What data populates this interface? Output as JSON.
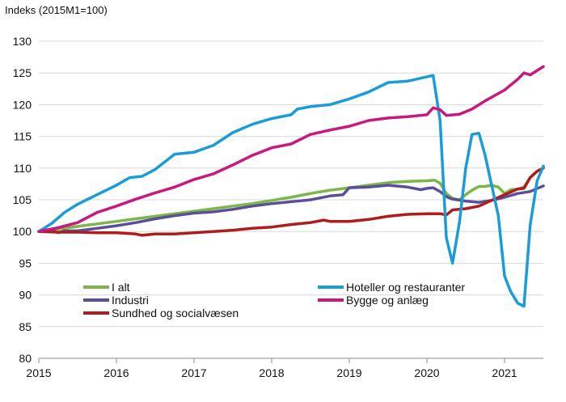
{
  "chart_data": {
    "type": "line",
    "ylabel": "Indeks (2015M1=100)",
    "ylim": [
      80,
      130
    ],
    "yticks": [
      80,
      85,
      90,
      95,
      100,
      105,
      110,
      115,
      120,
      125,
      130
    ],
    "xlim": [
      2015.0,
      2021.5
    ],
    "xticks": [
      "2015",
      "2016",
      "2017",
      "2018",
      "2019",
      "2020",
      "2021"
    ],
    "grid": "horizontal",
    "legend_position": "bottom",
    "series": [
      {
        "name": "I alt",
        "color": "#7ab648",
        "points": [
          [
            2015.0,
            100.0
          ],
          [
            2015.25,
            100.4
          ],
          [
            2015.5,
            100.8
          ],
          [
            2015.75,
            101.2
          ],
          [
            2016.0,
            101.6
          ],
          [
            2016.25,
            102.0
          ],
          [
            2016.5,
            102.4
          ],
          [
            2016.75,
            102.8
          ],
          [
            2017.0,
            103.2
          ],
          [
            2017.25,
            103.6
          ],
          [
            2017.5,
            104.0
          ],
          [
            2017.75,
            104.4
          ],
          [
            2018.0,
            104.9
          ],
          [
            2018.25,
            105.4
          ],
          [
            2018.5,
            106.0
          ],
          [
            2018.75,
            106.5
          ],
          [
            2019.0,
            106.9
          ],
          [
            2019.25,
            107.3
          ],
          [
            2019.5,
            107.7
          ],
          [
            2019.75,
            107.9
          ],
          [
            2020.0,
            108.0
          ],
          [
            2020.1,
            108.1
          ],
          [
            2020.17,
            107.6
          ],
          [
            2020.25,
            106.0
          ],
          [
            2020.33,
            105.2
          ],
          [
            2020.42,
            105.0
          ],
          [
            2020.5,
            105.8
          ],
          [
            2020.58,
            106.5
          ],
          [
            2020.67,
            107.1
          ],
          [
            2020.75,
            107.1
          ],
          [
            2020.83,
            107.3
          ],
          [
            2020.92,
            107.0
          ],
          [
            2021.0,
            106.0
          ],
          [
            2021.08,
            106.6
          ],
          [
            2021.17,
            106.7
          ],
          [
            2021.25,
            107.0
          ],
          [
            2021.33,
            108.5
          ],
          [
            2021.42,
            109.5
          ],
          [
            2021.5,
            110.0
          ]
        ]
      },
      {
        "name": "Industri",
        "color": "#5b4f9a",
        "points": [
          [
            2015.0,
            100.0
          ],
          [
            2015.17,
            100.2
          ],
          [
            2015.25,
            99.8
          ],
          [
            2015.33,
            100.1
          ],
          [
            2015.5,
            100.1
          ],
          [
            2015.75,
            100.5
          ],
          [
            2016.0,
            100.9
          ],
          [
            2016.25,
            101.4
          ],
          [
            2016.5,
            102.0
          ],
          [
            2016.75,
            102.5
          ],
          [
            2017.0,
            102.9
          ],
          [
            2017.25,
            103.1
          ],
          [
            2017.5,
            103.5
          ],
          [
            2017.75,
            104.0
          ],
          [
            2018.0,
            104.4
          ],
          [
            2018.25,
            104.7
          ],
          [
            2018.5,
            105.0
          ],
          [
            2018.75,
            105.6
          ],
          [
            2018.92,
            105.8
          ],
          [
            2019.0,
            106.9
          ],
          [
            2019.25,
            107.0
          ],
          [
            2019.5,
            107.3
          ],
          [
            2019.75,
            107.0
          ],
          [
            2019.92,
            106.6
          ],
          [
            2020.0,
            106.8
          ],
          [
            2020.08,
            106.9
          ],
          [
            2020.17,
            106.3
          ],
          [
            2020.25,
            105.5
          ],
          [
            2020.33,
            105.1
          ],
          [
            2020.5,
            104.8
          ],
          [
            2020.67,
            104.6
          ],
          [
            2020.83,
            104.9
          ],
          [
            2021.0,
            105.4
          ],
          [
            2021.17,
            106.0
          ],
          [
            2021.33,
            106.3
          ],
          [
            2021.5,
            107.2
          ]
        ]
      },
      {
        "name": "Sundhed og socialvæsen",
        "color": "#b01c1c",
        "points": [
          [
            2015.0,
            100.0
          ],
          [
            2015.25,
            99.9
          ],
          [
            2015.5,
            99.9
          ],
          [
            2015.75,
            99.8
          ],
          [
            2016.0,
            99.8
          ],
          [
            2016.25,
            99.6
          ],
          [
            2016.33,
            99.4
          ],
          [
            2016.5,
            99.6
          ],
          [
            2016.75,
            99.6
          ],
          [
            2017.0,
            99.8
          ],
          [
            2017.25,
            100.0
          ],
          [
            2017.5,
            100.2
          ],
          [
            2017.75,
            100.5
          ],
          [
            2018.0,
            100.7
          ],
          [
            2018.25,
            101.1
          ],
          [
            2018.5,
            101.4
          ],
          [
            2018.67,
            101.8
          ],
          [
            2018.75,
            101.6
          ],
          [
            2019.0,
            101.6
          ],
          [
            2019.25,
            101.9
          ],
          [
            2019.5,
            102.4
          ],
          [
            2019.75,
            102.7
          ],
          [
            2020.0,
            102.8
          ],
          [
            2020.17,
            102.8
          ],
          [
            2020.25,
            102.6
          ],
          [
            2020.33,
            103.4
          ],
          [
            2020.5,
            103.6
          ],
          [
            2020.67,
            104.0
          ],
          [
            2020.83,
            104.9
          ],
          [
            2021.0,
            105.8
          ],
          [
            2021.17,
            106.7
          ],
          [
            2021.25,
            106.8
          ],
          [
            2021.33,
            108.5
          ],
          [
            2021.42,
            109.5
          ],
          [
            2021.5,
            110.0
          ]
        ]
      },
      {
        "name": "Hoteller og restauranter",
        "color": "#1a9cd8",
        "points": [
          [
            2015.0,
            100.0
          ],
          [
            2015.17,
            101.3
          ],
          [
            2015.33,
            103.0
          ],
          [
            2015.5,
            104.3
          ],
          [
            2015.75,
            105.8
          ],
          [
            2016.0,
            107.3
          ],
          [
            2016.17,
            108.5
          ],
          [
            2016.33,
            108.7
          ],
          [
            2016.5,
            109.8
          ],
          [
            2016.75,
            112.2
          ],
          [
            2017.0,
            112.5
          ],
          [
            2017.25,
            113.6
          ],
          [
            2017.5,
            115.6
          ],
          [
            2017.75,
            116.9
          ],
          [
            2018.0,
            117.8
          ],
          [
            2018.25,
            118.4
          ],
          [
            2018.33,
            119.3
          ],
          [
            2018.5,
            119.7
          ],
          [
            2018.75,
            120.0
          ],
          [
            2019.0,
            120.9
          ],
          [
            2019.25,
            122.0
          ],
          [
            2019.5,
            123.5
          ],
          [
            2019.75,
            123.7
          ],
          [
            2020.0,
            124.4
          ],
          [
            2020.08,
            124.6
          ],
          [
            2020.17,
            117.5
          ],
          [
            2020.25,
            99.0
          ],
          [
            2020.33,
            95.0
          ],
          [
            2020.42,
            101.5
          ],
          [
            2020.5,
            110.0
          ],
          [
            2020.58,
            115.3
          ],
          [
            2020.67,
            115.5
          ],
          [
            2020.75,
            112.0
          ],
          [
            2020.83,
            107.5
          ],
          [
            2020.92,
            102.5
          ],
          [
            2021.0,
            93.0
          ],
          [
            2021.08,
            90.5
          ],
          [
            2021.17,
            88.7
          ],
          [
            2021.25,
            88.2
          ],
          [
            2021.33,
            101.0
          ],
          [
            2021.42,
            108.0
          ],
          [
            2021.5,
            110.3
          ]
        ]
      },
      {
        "name": "Bygge og anlæg",
        "color": "#c8197e",
        "points": [
          [
            2015.0,
            100.0
          ],
          [
            2015.25,
            100.6
          ],
          [
            2015.5,
            101.4
          ],
          [
            2015.75,
            103.0
          ],
          [
            2016.0,
            104.0
          ],
          [
            2016.25,
            105.1
          ],
          [
            2016.5,
            106.1
          ],
          [
            2016.75,
            107.0
          ],
          [
            2017.0,
            108.2
          ],
          [
            2017.25,
            109.1
          ],
          [
            2017.5,
            110.5
          ],
          [
            2017.75,
            112.0
          ],
          [
            2018.0,
            113.2
          ],
          [
            2018.25,
            113.8
          ],
          [
            2018.5,
            115.3
          ],
          [
            2018.75,
            116.0
          ],
          [
            2019.0,
            116.6
          ],
          [
            2019.25,
            117.5
          ],
          [
            2019.5,
            117.9
          ],
          [
            2019.75,
            118.1
          ],
          [
            2020.0,
            118.4
          ],
          [
            2020.08,
            119.5
          ],
          [
            2020.17,
            119.2
          ],
          [
            2020.25,
            118.3
          ],
          [
            2020.42,
            118.5
          ],
          [
            2020.58,
            119.3
          ],
          [
            2020.75,
            120.6
          ],
          [
            2021.0,
            122.3
          ],
          [
            2021.17,
            124.0
          ],
          [
            2021.25,
            125.0
          ],
          [
            2021.33,
            124.7
          ],
          [
            2021.42,
            125.4
          ],
          [
            2021.5,
            126.0
          ]
        ]
      }
    ]
  }
}
